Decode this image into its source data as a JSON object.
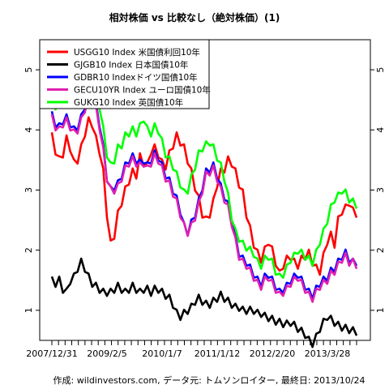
{
  "chart_data": {
    "type": "line",
    "title": "相対株価 vs 比較なし（絶対株価）(1)",
    "footer": "作成: wildinvestors.com, データ元: トムソンロイター, 最終日: 2013/10/24",
    "x_tick_labels": [
      "2007/12/31",
      "2009/2/5",
      "2010/1/7",
      "2011/1/12",
      "2012/2/20",
      "2013/3/28"
    ],
    "y_ticks": [
      1,
      2,
      3,
      4,
      5
    ],
    "ylim": [
      0.5,
      5.5
    ],
    "grid": false,
    "legend_position": "top-left",
    "series": [
      {
        "name": "USGG10 Index 米国債利回10年",
        "color": "#ff0000",
        "values": [
          3.9,
          3.65,
          3.5,
          3.6,
          3.85,
          3.7,
          3.45,
          3.5,
          3.7,
          3.95,
          4.15,
          4.1,
          3.85,
          3.65,
          3.3,
          2.6,
          2.1,
          2.25,
          2.6,
          2.8,
          3.0,
          3.15,
          3.3,
          3.25,
          3.55,
          3.45,
          3.4,
          3.65,
          3.7,
          3.6,
          3.45,
          3.4,
          3.6,
          3.75,
          3.9,
          3.8,
          3.7,
          3.5,
          3.3,
          3.05,
          2.85,
          2.6,
          2.5,
          2.6,
          2.8,
          3.1,
          3.3,
          3.35,
          3.5,
          3.45,
          3.3,
          3.1,
          2.95,
          2.6,
          2.35,
          2.1,
          1.95,
          1.85,
          2.0,
          2.15,
          2.0,
          1.8,
          1.6,
          1.75,
          1.85,
          1.9,
          1.8,
          1.75,
          1.85,
          1.9,
          1.95,
          1.8,
          1.7,
          1.65,
          1.9,
          2.15,
          2.25,
          2.1,
          2.5,
          2.65,
          2.7,
          2.8,
          2.65,
          2.6
        ]
      },
      {
        "name": "GJGB10 Index 日本国債10年",
        "color": "#000000",
        "values": [
          1.5,
          1.45,
          1.5,
          1.35,
          1.3,
          1.5,
          1.55,
          1.7,
          1.8,
          1.7,
          1.55,
          1.45,
          1.4,
          1.35,
          1.3,
          1.3,
          1.3,
          1.35,
          1.4,
          1.35,
          1.3,
          1.35,
          1.4,
          1.35,
          1.3,
          1.35,
          1.35,
          1.3,
          1.35,
          1.35,
          1.3,
          1.25,
          1.2,
          1.1,
          0.95,
          0.9,
          0.95,
          1.0,
          1.05,
          1.15,
          1.2,
          1.15,
          1.1,
          1.1,
          1.15,
          1.2,
          1.25,
          1.2,
          1.15,
          1.1,
          1.05,
          1.05,
          1.0,
          1.0,
          1.0,
          1.0,
          0.95,
          0.95,
          0.9,
          0.88,
          0.85,
          0.82,
          0.8,
          0.78,
          0.77,
          0.8,
          0.75,
          0.7,
          0.65,
          0.6,
          0.5,
          0.45,
          0.55,
          0.7,
          0.8,
          0.9,
          0.85,
          0.8,
          0.75,
          0.72,
          0.7,
          0.68,
          0.66,
          0.64
        ]
      },
      {
        "name": "GDBR10 Indexドイツ国債10年",
        "color": "#0000ff",
        "values": [
          4.25,
          4.1,
          4.05,
          4.15,
          4.2,
          4.1,
          4.0,
          4.05,
          4.2,
          4.4,
          4.6,
          4.6,
          4.4,
          4.1,
          3.7,
          3.2,
          3.0,
          3.05,
          3.1,
          3.25,
          3.4,
          3.5,
          3.55,
          3.5,
          3.45,
          3.5,
          3.4,
          3.5,
          3.6,
          3.55,
          3.4,
          3.25,
          3.15,
          3.0,
          2.85,
          2.65,
          2.4,
          2.3,
          2.45,
          2.6,
          2.8,
          3.05,
          3.3,
          3.35,
          3.4,
          3.25,
          3.05,
          2.9,
          2.75,
          2.5,
          2.2,
          1.95,
          1.85,
          1.8,
          1.7,
          1.6,
          1.5,
          1.45,
          1.55,
          1.6,
          1.5,
          1.4,
          1.3,
          1.35,
          1.4,
          1.5,
          1.55,
          1.6,
          1.5,
          1.4,
          1.3,
          1.25,
          1.35,
          1.45,
          1.5,
          1.55,
          1.65,
          1.7,
          1.8,
          1.9,
          1.95,
          1.85,
          1.8,
          1.8
        ]
      },
      {
        "name": "GECU10YR Index ユーロ国債10年",
        "color": "#e020b0",
        "values": [
          4.2,
          4.05,
          4.0,
          4.1,
          4.15,
          4.05,
          3.95,
          4.0,
          4.15,
          4.35,
          4.55,
          4.55,
          4.35,
          4.05,
          3.65,
          3.2,
          3.0,
          3.0,
          3.05,
          3.2,
          3.35,
          3.45,
          3.5,
          3.45,
          3.4,
          3.45,
          3.35,
          3.45,
          3.55,
          3.5,
          3.35,
          3.2,
          3.1,
          2.95,
          2.8,
          2.6,
          2.4,
          2.3,
          2.4,
          2.55,
          2.75,
          3.0,
          3.25,
          3.3,
          3.35,
          3.2,
          3.0,
          2.85,
          2.7,
          2.45,
          2.15,
          1.9,
          1.8,
          1.75,
          1.65,
          1.55,
          1.45,
          1.4,
          1.5,
          1.55,
          1.45,
          1.35,
          1.25,
          1.3,
          1.35,
          1.45,
          1.5,
          1.55,
          1.45,
          1.35,
          1.25,
          1.2,
          1.3,
          1.4,
          1.45,
          1.5,
          1.6,
          1.65,
          1.75,
          1.85,
          1.9,
          1.8,
          1.8,
          1.75
        ]
      },
      {
        "name": "GUKG10 Index 英国債10年",
        "color": "#00ff00",
        "values": [
          4.55,
          4.4,
          4.45,
          4.6,
          4.75,
          4.6,
          4.5,
          4.55,
          4.7,
          4.9,
          5.05,
          5.0,
          4.8,
          4.4,
          4.0,
          3.6,
          3.4,
          3.5,
          3.7,
          3.75,
          3.9,
          3.95,
          4.0,
          3.95,
          4.05,
          4.2,
          4.0,
          3.95,
          4.05,
          4.0,
          3.8,
          3.6,
          3.5,
          3.4,
          3.25,
          3.1,
          2.95,
          3.0,
          3.2,
          3.4,
          3.6,
          3.7,
          3.75,
          3.8,
          3.7,
          3.55,
          3.4,
          3.2,
          2.9,
          2.55,
          2.3,
          2.2,
          2.1,
          2.05,
          2.0,
          1.95,
          1.8,
          1.75,
          1.85,
          1.9,
          1.8,
          1.65,
          1.55,
          1.6,
          1.7,
          1.85,
          1.9,
          2.0,
          1.95,
          1.9,
          1.85,
          1.8,
          1.95,
          2.15,
          2.3,
          2.5,
          2.7,
          2.85,
          2.9,
          3.0,
          2.95,
          2.85,
          2.8,
          2.75
        ]
      }
    ]
  }
}
